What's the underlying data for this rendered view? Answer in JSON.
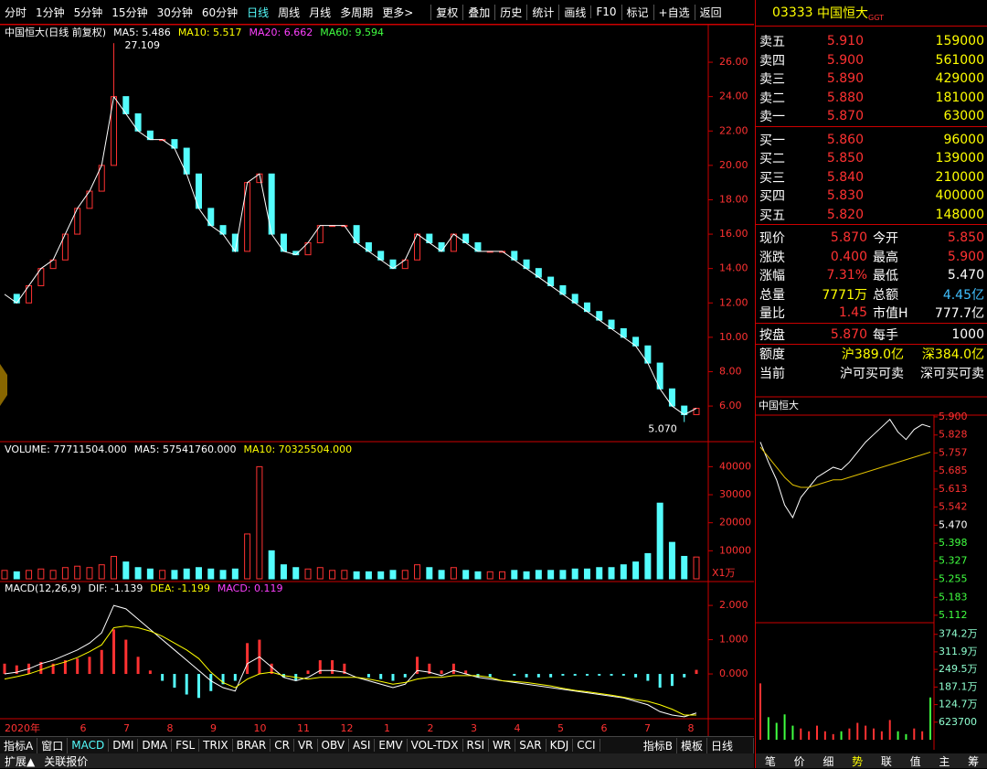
{
  "toolbar": {
    "periods": [
      "分时",
      "1分钟",
      "5分钟",
      "15分钟",
      "30分钟",
      "60分钟",
      "日线",
      "周线",
      "月线",
      "多周期",
      "更多>"
    ],
    "tools": [
      "复权",
      "叠加",
      "历史",
      "统计",
      "画线",
      "F10",
      "标记",
      "+自选",
      "返回"
    ]
  },
  "price_panel": {
    "title": "中国恒大(日线 前复权)",
    "ma": [
      {
        "label": "MA5: 5.486",
        "color": "#ffffff"
      },
      {
        "label": "MA10: 5.517",
        "color": "#ffff00"
      },
      {
        "label": "MA20: 6.662",
        "color": "#ff40ff"
      },
      {
        "label": "MA60: 9.594",
        "color": "#40ff40"
      }
    ],
    "ylim": [
      3.93,
      28.13
    ],
    "yticks": [
      {
        "value": 6,
        "label": "6.00"
      },
      {
        "value": 8,
        "label": "8.00"
      },
      {
        "value": 10,
        "label": "10.00"
      },
      {
        "value": 12,
        "label": "12.00"
      },
      {
        "value": 14,
        "label": "14.00"
      },
      {
        "value": 16,
        "label": "16.00"
      },
      {
        "value": 18,
        "label": "18.00"
      },
      {
        "value": 20,
        "label": "20.00"
      },
      {
        "value": 22,
        "label": "22.00"
      },
      {
        "value": 24,
        "label": "24.00"
      },
      {
        "value": 26,
        "label": "26.00"
      }
    ],
    "closes": [
      12.5,
      12,
      13,
      14,
      14.5,
      16,
      17.5,
      18.5,
      20,
      24,
      23,
      22,
      21.5,
      21.5,
      21,
      19.5,
      17.5,
      16.5,
      16,
      15,
      19,
      19.5,
      16,
      15,
      14.8,
      15.5,
      16.5,
      16.5,
      16.5,
      15.5,
      15,
      14.5,
      14,
      14.5,
      16,
      15.5,
      15,
      16,
      15.5,
      15,
      15,
      15,
      14.5,
      14,
      13.5,
      13,
      12.5,
      12,
      11.5,
      11,
      10.5,
      10,
      9.5,
      8.5,
      7,
      6,
      5.5,
      5.87
    ],
    "high": 27.109,
    "low": {
      "value": 5.07,
      "label": "5.070"
    },
    "up_color": "#ff3232",
    "down_color": "#54fcfc"
  },
  "volume_panel": {
    "labels": [
      {
        "text": "VOLUME: 77711504.000",
        "color": "#ffffff"
      },
      {
        "text": "MA5: 57541760.000",
        "color": "#ffffff"
      },
      {
        "text": "MA10: 70325504.000",
        "color": "#ffff00"
      }
    ],
    "unit": "X1万",
    "ylim": [
      0,
      47300
    ],
    "yticks": [
      10000,
      20000,
      30000,
      40000
    ],
    "values": [
      3000,
      2500,
      3000,
      3500,
      3000,
      4000,
      4500,
      4000,
      5000,
      8000,
      6000,
      4000,
      3500,
      3000,
      3000,
      3500,
      4000,
      3500,
      3000,
      3500,
      16000,
      40000,
      10000,
      5000,
      4000,
      3500,
      4000,
      3000,
      3000,
      2500,
      2500,
      2500,
      3000,
      3000,
      5000,
      4000,
      3000,
      4000,
      3000,
      2500,
      2500,
      2500,
      3000,
      2500,
      3000,
      3000,
      3000,
      3500,
      3500,
      4000,
      4000,
      5000,
      6000,
      9000,
      27000,
      13000,
      8000,
      7771
    ]
  },
  "macd_panel": {
    "labels": [
      {
        "text": "MACD(12,26,9)",
        "color": "#ffffff"
      },
      {
        "text": "DIF: -1.139",
        "color": "#ffffff"
      },
      {
        "text": "DEA: -1.199",
        "color": "#ffff00"
      },
      {
        "text": "MACD: 0.119",
        "color": "#ff40ff"
      }
    ],
    "ylim": [
      -1.28,
      2.59
    ],
    "yticks": [
      {
        "value": 0,
        "label": "0.000"
      },
      {
        "value": 1,
        "label": "1.000"
      },
      {
        "value": 2,
        "label": "2.000"
      }
    ],
    "hist": [
      0.3,
      0.25,
      0.3,
      0.35,
      0.3,
      0.4,
      0.45,
      0.5,
      0.7,
      1.3,
      1.0,
      0.5,
      0.1,
      -0.2,
      -0.4,
      -0.6,
      -0.7,
      -0.5,
      -0.3,
      -0.2,
      0.9,
      1.0,
      0.3,
      -0.1,
      -0.2,
      0.1,
      0.4,
      0.4,
      0.3,
      0,
      -0.1,
      -0.15,
      -0.2,
      -0.1,
      0.5,
      0.3,
      0.1,
      0.3,
      0.1,
      -0.1,
      -0.1,
      0,
      -0.05,
      -0.1,
      -0.1,
      -0.1,
      -0.05,
      -0.05,
      -0.05,
      -0.05,
      -0.05,
      -0.05,
      -0.1,
      -0.2,
      -0.4,
      -0.35,
      -0.1,
      0.119
    ],
    "dif": [
      0,
      0.05,
      0.15,
      0.3,
      0.4,
      0.55,
      0.7,
      0.9,
      1.2,
      2.0,
      1.9,
      1.6,
      1.3,
      1.0,
      0.7,
      0.4,
      0.1,
      -0.2,
      -0.4,
      -0.5,
      0.3,
      0.5,
      0.2,
      -0.1,
      -0.2,
      -0.1,
      0.1,
      0.1,
      0.05,
      -0.1,
      -0.2,
      -0.3,
      -0.4,
      -0.3,
      0.1,
      0.05,
      -0.05,
      0.1,
      0,
      -0.1,
      -0.15,
      -0.2,
      -0.25,
      -0.3,
      -0.35,
      -0.4,
      -0.45,
      -0.5,
      -0.55,
      -0.6,
      -0.65,
      -0.7,
      -0.8,
      -0.9,
      -1.1,
      -1.2,
      -1.25,
      -1.139
    ],
    "dea": [
      -0.15,
      -0.08,
      0,
      0.12,
      0.25,
      0.35,
      0.48,
      0.65,
      0.85,
      1.35,
      1.4,
      1.35,
      1.25,
      1.1,
      0.9,
      0.7,
      0.45,
      0.05,
      -0.25,
      -0.4,
      -0.15,
      0,
      0.05,
      -0.05,
      -0.1,
      -0.15,
      -0.1,
      -0.1,
      -0.1,
      -0.1,
      -0.15,
      -0.22,
      -0.3,
      -0.25,
      -0.15,
      -0.1,
      -0.1,
      -0.05,
      -0.05,
      -0.05,
      -0.1,
      -0.2,
      -0.22,
      -0.25,
      -0.3,
      -0.35,
      -0.42,
      -0.48,
      -0.52,
      -0.57,
      -0.62,
      -0.68,
      -0.75,
      -0.8,
      -0.9,
      -1.03,
      -1.2,
      -1.199
    ]
  },
  "x_labels": [
    "2020年",
    "6",
    "7",
    "8",
    "9",
    "10",
    "11",
    "12",
    "1",
    "2",
    "3",
    "4",
    "5",
    "6",
    "7",
    "8"
  ],
  "indicator_tabs": [
    "指标A",
    "窗口",
    "MACD",
    "DMI",
    "DMA",
    "FSL",
    "TRIX",
    "BRAR",
    "CR",
    "VR",
    "OBV",
    "ASI",
    "EMV",
    "VOL-TDX",
    "RSI",
    "WR",
    "SAR",
    "KDJ",
    "CCI"
  ],
  "indicator_tabs_right": [
    "指标B",
    "模板"
  ],
  "period_label": "日线",
  "bottom_tabs": [
    "扩展▲",
    "关联报价"
  ],
  "quote": {
    "code": "03333",
    "name": "中国恒大",
    "tag": "GGT",
    "asks": [
      [
        "卖五",
        "5.910",
        "159000"
      ],
      [
        "卖四",
        "5.900",
        "561000"
      ],
      [
        "卖三",
        "5.890",
        "429000"
      ],
      [
        "卖二",
        "5.880",
        "181000"
      ],
      [
        "卖一",
        "5.870",
        "63000"
      ]
    ],
    "bids": [
      [
        "买一",
        "5.860",
        "96000"
      ],
      [
        "买二",
        "5.850",
        "139000"
      ],
      [
        "买三",
        "5.840",
        "210000"
      ],
      [
        "买四",
        "5.830",
        "400000"
      ],
      [
        "买五",
        "5.820",
        "148000"
      ]
    ],
    "stats": [
      [
        "现价",
        "5.870",
        "今开",
        "5.850"
      ],
      [
        "涨跌",
        "0.400",
        "最高",
        "5.900"
      ],
      [
        "涨幅",
        "7.31%",
        "最低",
        "5.470"
      ],
      [
        "总量",
        "7771万",
        "总额",
        "4.45亿"
      ],
      [
        "量比",
        "1.45",
        "市值H",
        "777.7亿"
      ]
    ],
    "stats_colors": [
      [
        "#ff3232",
        "#ff3232"
      ],
      [
        "#ff3232",
        "#ff3232"
      ],
      [
        "#ff3232",
        "#ffffff"
      ],
      [
        "#ffff00",
        "#40c0ff"
      ],
      [
        "#ff3232",
        "#ffffff"
      ]
    ],
    "lot": [
      "按盘",
      "5.870",
      "每手",
      "1000"
    ],
    "quota": [
      "额度",
      "沪389.0亿",
      "深384.0亿"
    ],
    "status": [
      "当前",
      "沪可买可卖",
      "深可买可卖"
    ]
  },
  "intraday": {
    "title": "中国恒大",
    "ylim": [
      5.086,
      5.9215
    ],
    "price_ticks": [
      {
        "value": 5.9,
        "label": "5.900"
      },
      {
        "value": 5.828,
        "label": "5.828"
      },
      {
        "value": 5.757,
        "label": "5.757"
      },
      {
        "value": 5.685,
        "label": "5.685"
      },
      {
        "value": 5.613,
        "label": "5.613"
      },
      {
        "value": 5.542,
        "label": "5.542"
      },
      {
        "value": 5.47,
        "label": "5.470"
      },
      {
        "value": 5.398,
        "label": "5.398"
      },
      {
        "value": 5.327,
        "label": "5.327"
      },
      {
        "value": 5.255,
        "label": "5.255"
      },
      {
        "value": 5.183,
        "label": "5.183"
      },
      {
        "value": 5.112,
        "label": "5.112"
      }
    ],
    "price_tick_colors": [
      "#ff3232",
      "#ff3232",
      "#ff3232",
      "#ff3232",
      "#ff3232",
      "#ff3232",
      "#ffffff",
      "#40ff40",
      "#40ff40",
      "#40ff40",
      "#40ff40",
      "#40ff40"
    ],
    "vlim": [
      0,
      4090000
    ],
    "volume_ticks": [
      {
        "value": 3742000,
        "label": "374.2万"
      },
      {
        "value": 3119000,
        "label": "311.9万"
      },
      {
        "value": 2495000,
        "label": "249.5万"
      },
      {
        "value": 1871000,
        "label": "187.1万"
      },
      {
        "value": 1247000,
        "label": "124.7万"
      },
      623700
    ],
    "prices": [
      5.8,
      5.72,
      5.65,
      5.55,
      5.5,
      5.58,
      5.62,
      5.66,
      5.68,
      5.7,
      5.69,
      5.72,
      5.76,
      5.8,
      5.83,
      5.86,
      5.89,
      5.84,
      5.81,
      5.85,
      5.87,
      5.86
    ],
    "avg": [
      5.78,
      5.74,
      5.7,
      5.66,
      5.63,
      5.62,
      5.62,
      5.63,
      5.64,
      5.65,
      5.65,
      5.66,
      5.67,
      5.68,
      5.69,
      5.7,
      5.71,
      5.72,
      5.73,
      5.74,
      5.75,
      5.76
    ],
    "volumes": [
      2000000,
      800000,
      600000,
      900000,
      500000,
      400000,
      300000,
      500000,
      300000,
      200000,
      300000,
      400000,
      600000,
      500000,
      400000,
      300000,
      700000,
      300000,
      200000,
      400000,
      300000,
      1500000
    ]
  },
  "quote_tabs": [
    "笔",
    "价",
    "细",
    "势",
    "联",
    "值",
    "主",
    "筹"
  ]
}
